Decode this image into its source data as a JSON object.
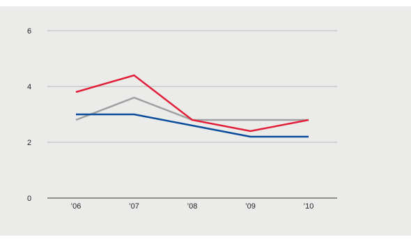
{
  "colors": {
    "background": "#ffffff",
    "plot_background": "#ebebea",
    "grid": "#b9b9b9",
    "baseline": "#333333",
    "text": "#222222",
    "series_colors": [
      "#a0a0a0",
      "#e21f39",
      "#0a4b9b"
    ]
  },
  "chart_data": {
    "type": "line",
    "title": "",
    "xlabel": "",
    "ylabel": "",
    "categories": [
      "’06",
      "’07",
      "’08",
      "’09",
      "’10"
    ],
    "ylim": [
      0,
      6
    ],
    "yticks": [
      0,
      2,
      4,
      6
    ],
    "grid": true,
    "legend": "none",
    "series": [
      {
        "values": [
          2.8,
          3.6,
          2.8,
          2.8,
          2.8
        ]
      },
      {
        "values": [
          3.8,
          4.4,
          2.8,
          2.4,
          2.8
        ]
      },
      {
        "values": [
          3.0,
          3.0,
          2.6,
          2.2,
          2.2
        ]
      }
    ]
  }
}
